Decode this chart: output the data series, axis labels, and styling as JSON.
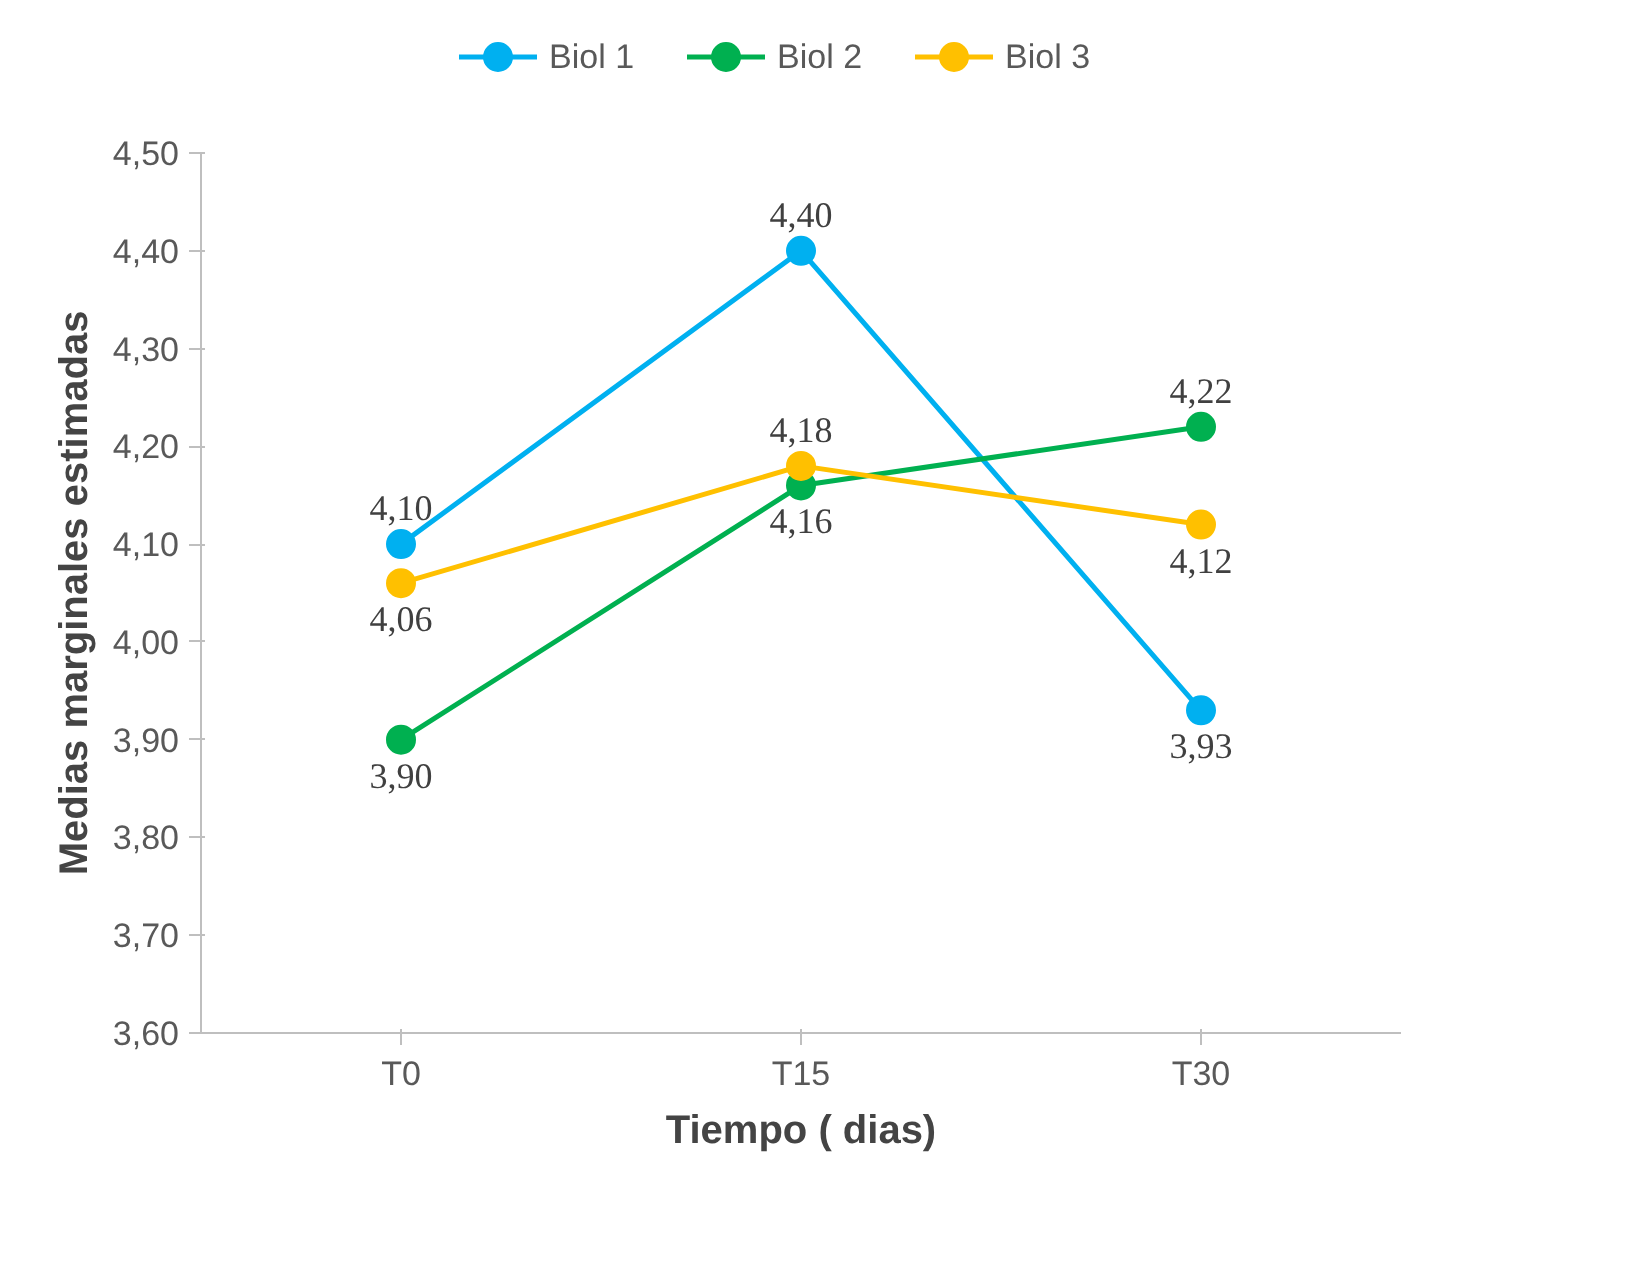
{
  "chart_data": {
    "type": "line",
    "xlabel": "Tiempo ( dias)",
    "ylabel": "Medias marginales estimadas",
    "categories": [
      "T0",
      "T15",
      "T30"
    ],
    "series": [
      {
        "name": "Biol 1",
        "color": "#00b0f0",
        "values": [
          4.1,
          4.4,
          3.93
        ],
        "value_labels": [
          "4,10",
          "4,40",
          "3,93"
        ]
      },
      {
        "name": "Biol 2",
        "color": "#00b050",
        "values": [
          3.9,
          4.16,
          4.22
        ],
        "value_labels": [
          "3,90",
          "4,16",
          "4,22"
        ]
      },
      {
        "name": "Biol 3",
        "color": "#ffc000",
        "values": [
          4.06,
          4.18,
          4.12
        ],
        "value_labels": [
          "4,06",
          "4,18",
          "4,12"
        ]
      }
    ],
    "ylim": [
      3.6,
      4.5
    ],
    "yticks": [
      {
        "value": 3.6,
        "label": "3,60"
      },
      {
        "value": 3.7,
        "label": "3,70"
      },
      {
        "value": 3.8,
        "label": "3,80"
      },
      {
        "value": 3.9,
        "label": "3,90"
      },
      {
        "value": 4.0,
        "label": "4,00"
      },
      {
        "value": 4.1,
        "label": "4,10"
      },
      {
        "value": 4.2,
        "label": "4,20"
      },
      {
        "value": 4.3,
        "label": "4,30"
      },
      {
        "value": 4.4,
        "label": "4,40"
      },
      {
        "value": 4.5,
        "label": "4,50"
      }
    ],
    "grid": false,
    "legend": "top",
    "marker": "circle",
    "line_style": "solid"
  }
}
